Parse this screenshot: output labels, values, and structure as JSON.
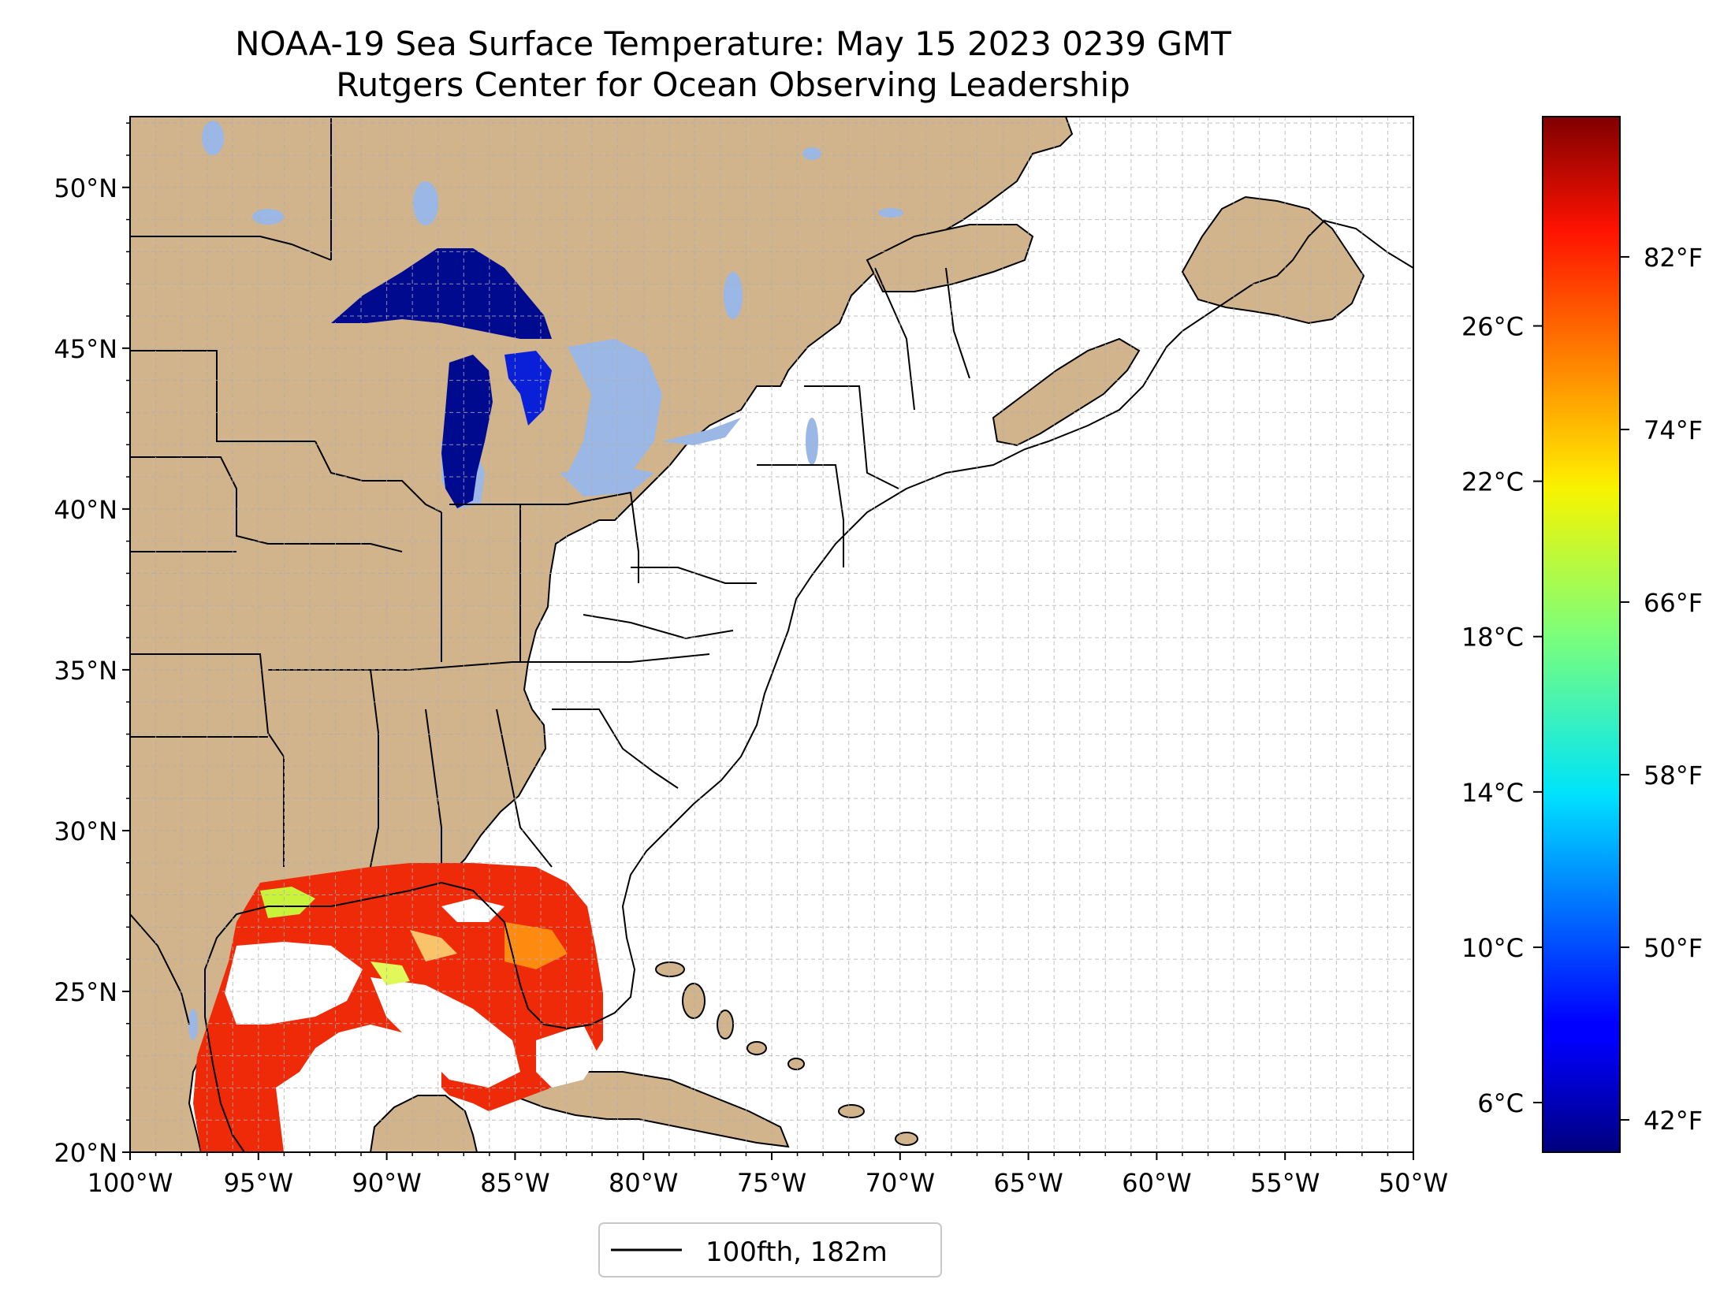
{
  "title": {
    "line1": "NOAA-19 Sea Surface Temperature: May 15 2023 0239 GMT",
    "line2": "Rutgers Center for Ocean Observing Leadership"
  },
  "map": {
    "lon_range": [
      -100,
      -50
    ],
    "lat_range": [
      20,
      52.2
    ],
    "lon_ticks": [
      {
        "value": -100,
        "label": "100°W"
      },
      {
        "value": -95,
        "label": "95°W"
      },
      {
        "value": -90,
        "label": "90°W"
      },
      {
        "value": -85,
        "label": "85°W"
      },
      {
        "value": -80,
        "label": "80°W"
      },
      {
        "value": -75,
        "label": "75°W"
      },
      {
        "value": -70,
        "label": "70°W"
      },
      {
        "value": -65,
        "label": "65°W"
      },
      {
        "value": -60,
        "label": "60°W"
      },
      {
        "value": -55,
        "label": "55°W"
      },
      {
        "value": -50,
        "label": "50°W"
      }
    ],
    "lat_ticks": [
      {
        "value": 20,
        "label": "20°N"
      },
      {
        "value": 25,
        "label": "25°N"
      },
      {
        "value": 30,
        "label": "30°N"
      },
      {
        "value": 35,
        "label": "35°N"
      },
      {
        "value": 40,
        "label": "40°N"
      },
      {
        "value": 45,
        "label": "45°N"
      },
      {
        "value": 50,
        "label": "50°N"
      }
    ],
    "gridlines": true,
    "colors": {
      "land": "#d2b48c",
      "ocean": "#ffffff",
      "inland_water": "#9ab7e6",
      "great_lakes_sst": "#000a8f",
      "gulf_sst": "#ee2a08",
      "border": "#000000",
      "grid": "#b0b0b0"
    }
  },
  "colorbar": {
    "colormap": "jet",
    "fahrenheit_ticks": [
      {
        "value": 42,
        "label": "42°F"
      },
      {
        "value": 50,
        "label": "50°F"
      },
      {
        "value": 58,
        "label": "58°F"
      },
      {
        "value": 66,
        "label": "66°F"
      },
      {
        "value": 74,
        "label": "74°F"
      },
      {
        "value": 82,
        "label": "82°F"
      }
    ],
    "celsius_ticks": [
      {
        "value": 6,
        "label": "6°C"
      },
      {
        "value": 10,
        "label": "10°C"
      },
      {
        "value": 14,
        "label": "14°C"
      },
      {
        "value": 18,
        "label": "18°C"
      },
      {
        "value": 22,
        "label": "22°C"
      },
      {
        "value": 26,
        "label": "26°C"
      }
    ],
    "f_range": [
      40.5,
      88.5
    ]
  },
  "legend": {
    "entry": "100fth, 182m",
    "placement": "bottom-center"
  }
}
